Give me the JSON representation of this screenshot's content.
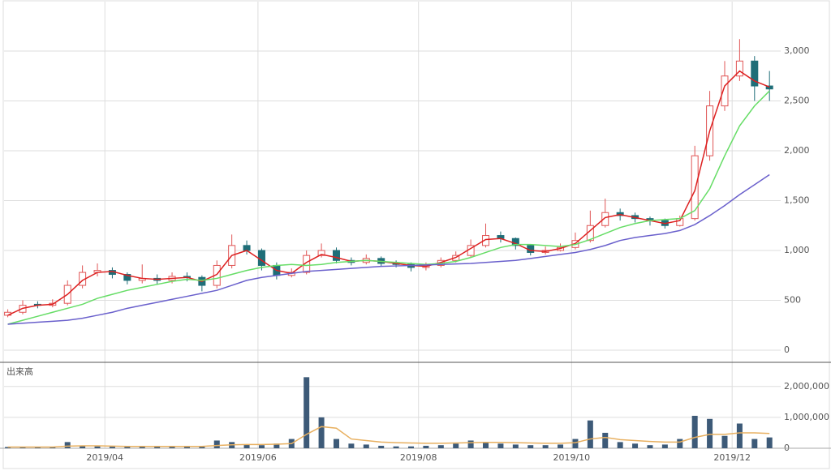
{
  "chart_data": {
    "type": "candlestick",
    "x": [
      0,
      4,
      8,
      12,
      16,
      20,
      24,
      28,
      32,
      36,
      40,
      44,
      48,
      52,
      56,
      60,
      64,
      68,
      72,
      76,
      80,
      84,
      88,
      92,
      96,
      100,
      104,
      108,
      112,
      116,
      120,
      124,
      128,
      132,
      136,
      140,
      144,
      148,
      152,
      156,
      160,
      164,
      168,
      172,
      176,
      180,
      184,
      188,
      192,
      196,
      200,
      204
    ],
    "open": [
      350,
      380,
      460,
      450,
      470,
      650,
      780,
      800,
      760,
      700,
      720,
      700,
      740,
      730,
      650,
      850,
      1050,
      1000,
      850,
      750,
      780,
      950,
      1000,
      900,
      880,
      920,
      870,
      860,
      830,
      850,
      900,
      950,
      1050,
      1150,
      1120,
      1050,
      980,
      1000,
      1030,
      1100,
      1250,
      1380,
      1350,
      1320,
      1300,
      1250,
      1320,
      1950,
      2450,
      2750,
      2900,
      2650
    ],
    "high": [
      410,
      500,
      490,
      510,
      700,
      850,
      870,
      830,
      780,
      860,
      760,
      780,
      780,
      750,
      900,
      1160,
      1100,
      1020,
      880,
      820,
      1000,
      1070,
      1030,
      930,
      960,
      940,
      900,
      880,
      880,
      930,
      990,
      1110,
      1270,
      1190,
      1130,
      1060,
      1040,
      1070,
      1180,
      1400,
      1520,
      1420,
      1380,
      1340,
      1320,
      1350,
      2050,
      2600,
      2900,
      3120,
      2950,
      2800
    ],
    "low": [
      330,
      360,
      420,
      430,
      450,
      620,
      740,
      720,
      660,
      670,
      660,
      670,
      690,
      590,
      620,
      820,
      960,
      800,
      710,
      730,
      760,
      930,
      870,
      850,
      860,
      840,
      830,
      790,
      800,
      830,
      880,
      930,
      1030,
      1080,
      1010,
      950,
      960,
      990,
      1010,
      1080,
      1230,
      1300,
      1280,
      1250,
      1220,
      1240,
      1300,
      1900,
      2400,
      2700,
      2500,
      2500
    ],
    "close": [
      380,
      450,
      450,
      470,
      650,
      780,
      800,
      760,
      700,
      720,
      700,
      740,
      730,
      650,
      850,
      1050,
      1000,
      850,
      750,
      780,
      950,
      1000,
      900,
      880,
      920,
      870,
      860,
      830,
      850,
      900,
      950,
      1050,
      1150,
      1120,
      1050,
      980,
      1000,
      1030,
      1100,
      1250,
      1380,
      1350,
      1320,
      1300,
      1250,
      1320,
      1950,
      2450,
      2750,
      2900,
      2650,
      2620
    ],
    "up_color": "#e05555",
    "down_color": "#1f6e78",
    "series": [
      {
        "color": "#dd2020",
        "values": [
          350,
          420,
          450,
          460,
          560,
          700,
          780,
          790,
          750,
          720,
          710,
          720,
          730,
          690,
          760,
          950,
          1000,
          900,
          800,
          770,
          880,
          960,
          930,
          890,
          900,
          890,
          870,
          850,
          840,
          880,
          930,
          1020,
          1110,
          1120,
          1070,
          1000,
          990,
          1020,
          1070,
          1200,
          1330,
          1360,
          1330,
          1300,
          1270,
          1300,
          1600,
          2200,
          2650,
          2800,
          2700,
          2640
        ]
      },
      {
        "color": "#66dd66",
        "values": [
          260,
          300,
          340,
          380,
          420,
          460,
          520,
          560,
          600,
          630,
          660,
          690,
          710,
          700,
          720,
          760,
          800,
          830,
          850,
          860,
          850,
          860,
          880,
          890,
          900,
          890,
          880,
          870,
          860,
          870,
          890,
          930,
          980,
          1030,
          1060,
          1060,
          1050,
          1040,
          1060,
          1110,
          1170,
          1230,
          1270,
          1300,
          1310,
          1320,
          1400,
          1620,
          1950,
          2250,
          2450,
          2600
        ]
      },
      {
        "color": "#6a60cc",
        "values": [
          260,
          270,
          280,
          290,
          300,
          320,
          350,
          380,
          420,
          450,
          480,
          510,
          540,
          570,
          600,
          650,
          700,
          730,
          750,
          770,
          790,
          800,
          810,
          820,
          830,
          840,
          845,
          850,
          855,
          860,
          865,
          870,
          880,
          890,
          900,
          920,
          940,
          960,
          980,
          1010,
          1050,
          1100,
          1130,
          1150,
          1170,
          1200,
          1260,
          1350,
          1450,
          1560,
          1660,
          1760
        ]
      }
    ],
    "xlim": [
      -1,
      207
    ],
    "xticks": [
      {
        "value": 26,
        "label": "2019/04"
      },
      {
        "value": 67,
        "label": "2019/06"
      },
      {
        "value": 110,
        "label": "2019/08"
      },
      {
        "value": 151,
        "label": "2019/10"
      },
      {
        "value": 194,
        "label": "2019/12"
      }
    ],
    "ylim": [
      -122,
      3496
    ],
    "yticks": [
      0,
      500,
      {
        "value": 1000,
        "label": "1,000"
      },
      {
        "value": 1500,
        "label": "1,500"
      },
      {
        "value": 2000,
        "label": "2,000"
      },
      {
        "value": 2500,
        "label": "2,500"
      },
      {
        "value": 3000,
        "label": "3,000"
      }
    ],
    "grid": true,
    "volume": {
      "label": "出来高",
      "color": "#3d5a78",
      "values": [
        40000,
        30000,
        30000,
        50000,
        200000,
        80000,
        60000,
        50000,
        50000,
        60000,
        60000,
        50000,
        50000,
        60000,
        250000,
        200000,
        120000,
        100000,
        150000,
        300000,
        2300000,
        1000000,
        300000,
        150000,
        120000,
        80000,
        60000,
        60000,
        80000,
        100000,
        150000,
        250000,
        200000,
        150000,
        120000,
        100000,
        100000,
        120000,
        300000,
        900000,
        500000,
        200000,
        150000,
        100000,
        120000,
        300000,
        1050000,
        950000,
        400000,
        800000,
        300000,
        350000
      ],
      "ma": {
        "color": "#e8b060",
        "values": [
          40000,
          40000,
          40000,
          40000,
          70000,
          80000,
          80000,
          70000,
          60000,
          60000,
          60000,
          60000,
          60000,
          60000,
          90000,
          110000,
          120000,
          120000,
          130000,
          150000,
          450000,
          700000,
          650000,
          300000,
          250000,
          200000,
          180000,
          170000,
          160000,
          160000,
          170000,
          180000,
          190000,
          190000,
          180000,
          170000,
          160000,
          160000,
          180000,
          300000,
          350000,
          280000,
          250000,
          220000,
          200000,
          200000,
          350000,
          450000,
          450000,
          500000,
          500000,
          480000
        ]
      },
      "ylim": [
        0,
        2650000
      ],
      "yticks": [
        0,
        {
          "value": 1000000,
          "label": "1,000,000"
        },
        {
          "value": 2000000,
          "label": "2,000,000"
        }
      ]
    }
  }
}
